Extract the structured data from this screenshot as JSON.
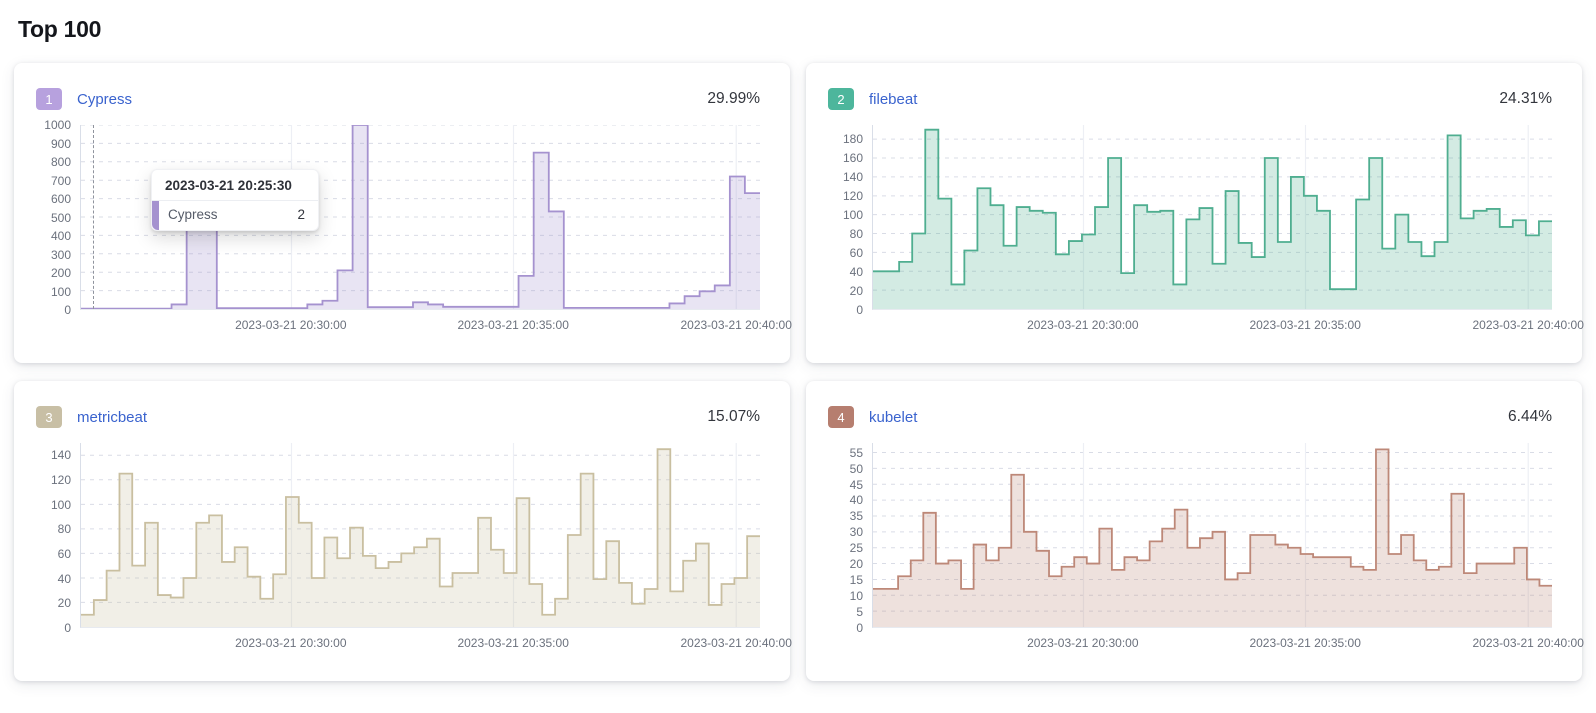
{
  "page": {
    "title": "Top 100"
  },
  "tooltip": {
    "timestamp": "2023-03-21 20:25:30",
    "series_name": "Cypress",
    "value": "2"
  },
  "chart_data": [
    {
      "type": "area",
      "rank": "1",
      "name": "Cypress",
      "percent": "29.99%",
      "colors": {
        "badge": "#b7a1de",
        "line": "#a592cf"
      },
      "y_ticks": [
        0,
        100,
        200,
        300,
        400,
        500,
        600,
        700,
        800,
        900,
        1000
      ],
      "y_domain_max": 1000,
      "x_labels": [
        "2023-03-21 20:30:00",
        "2023-03-21 20:35:00",
        "2023-03-21 20:40:00"
      ],
      "values": [
        2,
        2,
        2,
        2,
        2,
        2,
        25,
        600,
        600,
        5,
        5,
        5,
        5,
        5,
        5,
        25,
        45,
        210,
        1000,
        10,
        10,
        10,
        36,
        25,
        12,
        12,
        12,
        12,
        12,
        180,
        850,
        530,
        6,
        6,
        6,
        6,
        6,
        6,
        6,
        30,
        70,
        96,
        128,
        720,
        630
      ],
      "has_cursor": true,
      "legend_position": "none",
      "grid": "dashed-horizontal"
    },
    {
      "type": "area",
      "rank": "2",
      "name": "filebeat",
      "percent": "24.31%",
      "colors": {
        "badge": "#4db69c",
        "line": "#4fae90"
      },
      "y_ticks": [
        0,
        20,
        40,
        60,
        80,
        100,
        120,
        140,
        160,
        180
      ],
      "y_domain_max": 195,
      "x_labels": [
        "2023-03-21 20:30:00",
        "2023-03-21 20:35:00",
        "2023-03-21 20:40:00"
      ],
      "values": [
        40,
        40,
        50,
        80,
        190,
        117,
        26,
        62,
        128,
        110,
        67,
        108,
        104,
        102,
        58,
        72,
        79,
        108,
        160,
        38,
        110,
        103,
        104,
        26,
        95,
        107,
        48,
        125,
        70,
        55,
        160,
        71,
        140,
        120,
        104,
        21,
        21,
        116,
        160,
        64,
        100,
        71,
        56,
        71,
        184,
        96,
        104,
        106,
        87,
        94,
        78,
        93
      ],
      "has_cursor": false,
      "legend_position": "none",
      "grid": "dashed-horizontal"
    },
    {
      "type": "area",
      "rank": "3",
      "name": "metricbeat",
      "percent": "15.07%",
      "colors": {
        "badge": "#c8bfa5",
        "line": "#c9bfa0"
      },
      "y_ticks": [
        0,
        20,
        40,
        60,
        80,
        100,
        120,
        140
      ],
      "y_domain_max": 150,
      "x_labels": [
        "2023-03-21 20:30:00",
        "2023-03-21 20:35:00",
        "2023-03-21 20:40:00"
      ],
      "values": [
        10,
        22,
        46,
        125,
        50,
        85,
        26,
        24,
        40,
        85,
        91,
        53,
        65,
        41,
        23,
        43,
        106,
        85,
        40,
        73,
        56,
        81,
        58,
        48,
        53,
        60,
        65,
        72,
        33,
        44,
        44,
        89,
        63,
        44,
        105,
        35,
        10,
        23,
        75,
        125,
        39,
        70,
        36,
        19,
        31,
        145,
        29,
        54,
        68,
        18,
        35,
        40,
        74
      ],
      "has_cursor": false,
      "legend_position": "none",
      "grid": "dashed-horizontal"
    },
    {
      "type": "area",
      "rank": "4",
      "name": "kubelet",
      "percent": "6.44%",
      "colors": {
        "badge": "#b67e6f",
        "line": "#bd8878"
      },
      "y_ticks": [
        0,
        5,
        10,
        15,
        20,
        25,
        30,
        35,
        40,
        45,
        50,
        55
      ],
      "y_domain_max": 58,
      "x_labels": [
        "2023-03-21 20:30:00",
        "2023-03-21 20:35:00",
        "2023-03-21 20:40:00"
      ],
      "values": [
        12,
        12,
        16,
        21,
        36,
        20,
        21,
        12,
        26,
        21,
        25,
        48,
        30,
        24,
        16,
        19,
        22,
        20,
        31,
        18,
        22,
        21,
        27,
        31,
        37,
        25,
        28,
        30,
        15,
        17,
        29,
        29,
        26,
        25,
        23,
        22,
        22,
        22,
        19,
        18,
        56,
        23,
        29,
        21,
        18,
        19,
        42,
        17,
        20,
        20,
        20,
        25,
        15,
        13
      ],
      "has_cursor": false,
      "legend_position": "none",
      "grid": "dashed-horizontal"
    }
  ]
}
